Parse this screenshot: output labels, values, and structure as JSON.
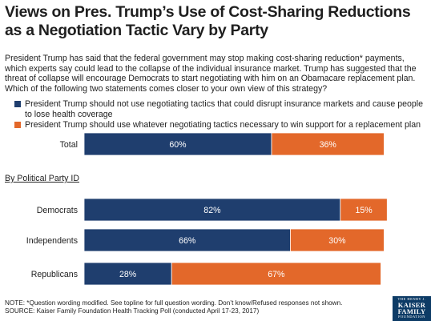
{
  "title": "Views on Pres. Trump’s Use of Cost-Sharing Reductions as a Negotiation Tactic Vary by Party",
  "intro": "President Trump has said that the federal government may stop making cost-sharing reduction* payments, which experts say could lead to the collapse of the individual insurance market. Trump has suggested that the threat of collapse will encourage Democrats to start negotiating with him on an Obamacare replacement plan. Which of the following two statements comes closer to your own view of this strategy?",
  "legend": [
    {
      "label": "President Trump should not use negotiating tactics that could disrupt insurance markets and cause people to lose health coverage",
      "color": "#1f3e6e"
    },
    {
      "label": "President Trump should use whatever negotiating tactics necessary to win support for a replacement plan",
      "color": "#e3682a"
    }
  ],
  "section_label": "By Political Party ID",
  "chart_data": {
    "type": "bar",
    "orientation": "horizontal",
    "stacked": true,
    "categories": [
      "Total",
      "Democrats",
      "Independents",
      "Republicans"
    ],
    "series": [
      {
        "name": "President Trump should not use negotiating tactics that could disrupt insurance markets and cause people to lose health coverage",
        "values": [
          60,
          82,
          66,
          28
        ],
        "labels": [
          "60%",
          "82%",
          "66%",
          "28%"
        ],
        "color": "#1f3e6e"
      },
      {
        "name": "President Trump should use whatever negotiating tactics necessary to win support for a replacement plan",
        "values": [
          36,
          15,
          30,
          67
        ],
        "labels": [
          "36%",
          "15%",
          "30%",
          "67%"
        ],
        "color": "#e3682a"
      }
    ],
    "xlim": [
      0,
      100
    ],
    "grid": false,
    "legend_position": "top"
  },
  "footnote": [
    "NOTE: *Question wording modified. See topline for full question wording. Don’t know/Refused responses not shown.",
    "SOURCE: Kaiser Family Foundation Health Tracking Poll (conducted April 17-23, 2017)"
  ],
  "logo": {
    "line1": "THE HENRY J.",
    "line2": "KAISER",
    "line3": "FAMILY",
    "line4": "FOUNDATION"
  }
}
